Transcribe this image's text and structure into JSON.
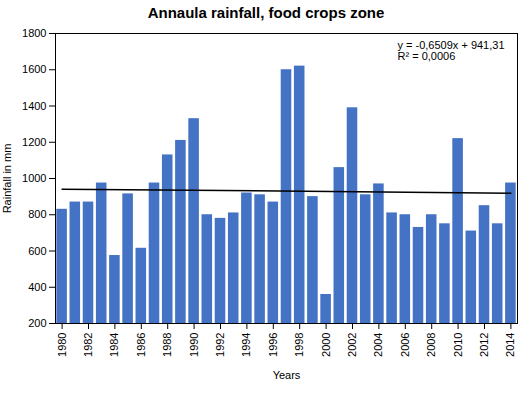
{
  "chart_data": {
    "type": "bar",
    "title": "Annaula rainfall, food crops zone",
    "xlabel": "Years",
    "ylabel": "Rainfall in mm",
    "x": [
      1980,
      1981,
      1982,
      1983,
      1984,
      1985,
      1986,
      1987,
      1988,
      1989,
      1990,
      1991,
      1992,
      1993,
      1994,
      1995,
      1996,
      1997,
      1998,
      1999,
      2000,
      2001,
      2002,
      2003,
      2004,
      2005,
      2006,
      2007,
      2008,
      2009,
      2010,
      2011,
      2012,
      2013,
      2014
    ],
    "values": [
      830,
      870,
      870,
      975,
      575,
      915,
      615,
      975,
      1130,
      1210,
      1330,
      800,
      780,
      810,
      920,
      910,
      870,
      1600,
      1620,
      900,
      360,
      1060,
      1390,
      910,
      970,
      810,
      800,
      730,
      800,
      750,
      1220,
      710,
      850,
      750,
      975
    ],
    "color": "#4472C4",
    "trend_line": {
      "x": [
        1980,
        2014
      ],
      "values": [
        941.31,
        919.1794
      ],
      "color": "#000000"
    },
    "annotations": [
      "y = -0,6509x + 941,31",
      "R² = 0,0006"
    ],
    "xlim": [
      1979.5,
      2014.5
    ],
    "xticks": [
      1980,
      1982,
      1984,
      1986,
      1988,
      1990,
      1992,
      1994,
      1996,
      1998,
      2000,
      2002,
      2004,
      2006,
      2008,
      2010,
      2012,
      2014
    ],
    "ylim": [
      200,
      1800
    ],
    "yticks": [
      200,
      400,
      600,
      800,
      1000,
      1200,
      1400,
      1600,
      1800
    ]
  }
}
